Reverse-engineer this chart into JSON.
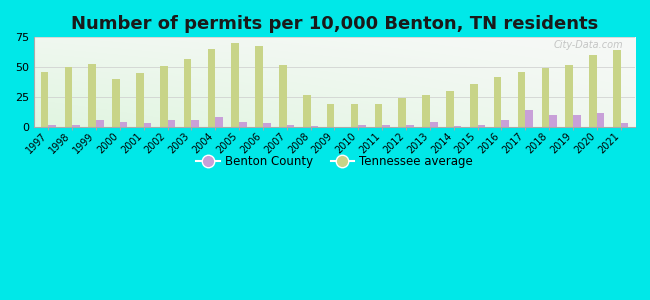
{
  "title": "Number of permits per 10,000 Benton, TN residents",
  "years": [
    1997,
    1998,
    1999,
    2000,
    2001,
    2002,
    2003,
    2004,
    2005,
    2006,
    2007,
    2008,
    2009,
    2010,
    2011,
    2012,
    2013,
    2014,
    2015,
    2016,
    2017,
    2018,
    2019,
    2020,
    2021
  ],
  "benton_county": [
    2,
    2,
    6,
    4,
    3,
    6,
    6,
    8,
    4,
    3,
    2,
    1,
    0,
    2,
    2,
    2,
    4,
    1,
    2,
    6,
    14,
    10,
    10,
    12,
    3
  ],
  "tn_average": [
    46,
    50,
    53,
    40,
    45,
    51,
    57,
    65,
    70,
    68,
    52,
    27,
    19,
    19,
    19,
    24,
    27,
    30,
    36,
    42,
    46,
    49,
    52,
    60,
    64
  ],
  "benton_color": "#c8a0d8",
  "tn_color": "#c8d488",
  "background_color": "#00e8e8",
  "ylim": [
    0,
    75
  ],
  "yticks": [
    0,
    25,
    50,
    75
  ],
  "title_fontsize": 13,
  "legend_benton": "Benton County",
  "legend_tn": "Tennessee average",
  "watermark": "City-Data.com"
}
